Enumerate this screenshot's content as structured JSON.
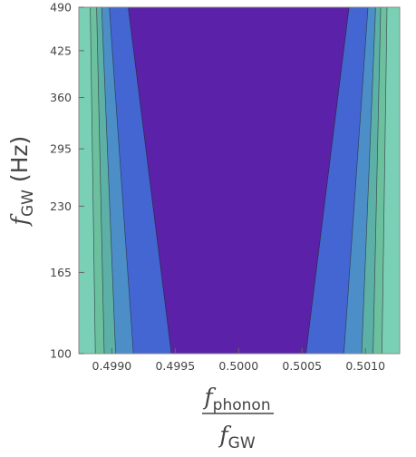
{
  "chart_data": {
    "type": "heatmap",
    "subtype": "contour",
    "xlabel": {
      "numerator": {
        "base": "f",
        "sub": "phonon"
      },
      "denominator": {
        "base": "f",
        "sub": "GW"
      }
    },
    "ylabel": {
      "base": "f",
      "sub": "GW",
      "unit": " (Hz)"
    },
    "x_ticks": [
      {
        "value": 0.499,
        "label": "0.4990"
      },
      {
        "value": 0.4995,
        "label": "0.4995"
      },
      {
        "value": 0.5,
        "label": "0.5000"
      },
      {
        "value": 0.5005,
        "label": "0.5005"
      },
      {
        "value": 0.501,
        "label": "0.5010"
      }
    ],
    "y_ticks": [
      {
        "value": 100,
        "label": "100"
      },
      {
        "value": 165,
        "label": "165"
      },
      {
        "value": 230,
        "label": "230"
      },
      {
        "value": 295,
        "label": "295"
      },
      {
        "value": 360,
        "label": "360"
      },
      {
        "value": 425,
        "label": "425"
      },
      {
        "value": 490,
        "label": "490"
      }
    ],
    "xlim": [
      0.49874,
      0.50127
    ],
    "ylim": [
      100,
      490
    ],
    "y_scale": "sqrt",
    "background_color": "#7ad0b5",
    "contour_bands": [
      {
        "color": "#6cc09e",
        "left": {
          "low": 0.49887,
          "high": 0.49883
        },
        "right": {
          "low": 0.50113,
          "high": 0.50117
        }
      },
      {
        "color": "#5cb0a6",
        "left": {
          "low": 0.49894,
          "high": 0.49888
        },
        "right": {
          "low": 0.50106,
          "high": 0.50112
        }
      },
      {
        "color": "#4c8fc8",
        "left": {
          "low": 0.49903,
          "high": 0.49892
        },
        "right": {
          "low": 0.50097,
          "high": 0.50108
        }
      },
      {
        "color": "#4466d2",
        "left": {
          "low": 0.49917,
          "high": 0.49898
        },
        "right": {
          "low": 0.50083,
          "high": 0.50102
        }
      },
      {
        "color": "#3f46c6",
        "left": {
          "low": 0.49947,
          "high": 0.49913
        },
        "right": {
          "low": 0.50053,
          "high": 0.50087
        }
      },
      {
        "color": "#5b22a9",
        "left": {
          "low": 0.49947,
          "high": 0.49913
        },
        "right": {
          "low": 0.50053,
          "high": 0.50087
        }
      }
    ]
  }
}
